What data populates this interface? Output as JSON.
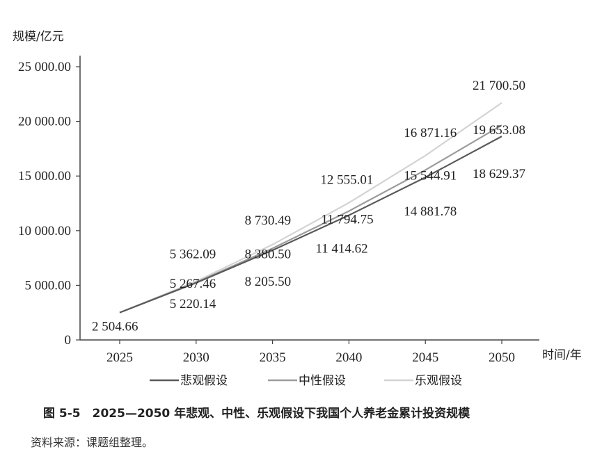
{
  "chart_data": {
    "type": "line",
    "ylabel": "规模/亿元",
    "xlabel": "时间/年",
    "x": [
      2025,
      2030,
      2035,
      2040,
      2045,
      2050
    ],
    "x_tick_labels": [
      "2025",
      "2030",
      "2035",
      "2040",
      "2045",
      "2050"
    ],
    "ylim": [
      0,
      25000
    ],
    "y_ticks": [
      0,
      5000,
      10000,
      15000,
      20000,
      25000
    ],
    "y_tick_labels": [
      "0",
      "5 000.00",
      "10 000.00",
      "15 000.00",
      "20  000.00",
      "25 000.00"
    ],
    "grid": false,
    "legend_position": "bottom",
    "series": [
      {
        "name": "悲观假设",
        "color": "#595959",
        "values": [
          2504.66,
          5220.14,
          8205.5,
          11414.62,
          14881.78,
          18629.37
        ],
        "labels": [
          "2 504.66",
          "5 220.14",
          "8 205.50",
          "11 414.62",
          "14 881.78",
          "18 629.37"
        ]
      },
      {
        "name": "中性假设",
        "color": "#9b9b9b",
        "values": [
          2504.66,
          5267.46,
          8380.5,
          11794.75,
          15544.91,
          19653.08
        ],
        "labels": [
          "",
          "5 267.46",
          "8 380.50",
          "11 794.75",
          "15 544.91",
          "19 653.08"
        ]
      },
      {
        "name": "乐观假设",
        "color": "#d3d3d3",
        "values": [
          2504.66,
          5362.09,
          8730.49,
          12555.01,
          16871.16,
          21700.5
        ],
        "labels": [
          "",
          "5 362.09",
          "8 730.49",
          "12 555.01",
          "16 871.16",
          "21 700.50"
        ]
      }
    ]
  },
  "caption": "图 5-5　2025—2050 年悲观、中性、乐观假设下我国个人养老金累计投资规模",
  "source": "资料来源：课题组整理。"
}
